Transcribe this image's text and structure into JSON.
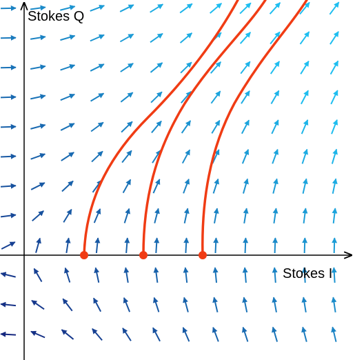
{
  "axes": {
    "y_label": "Stokes Q",
    "x_label": "Stokes I"
  }
}
